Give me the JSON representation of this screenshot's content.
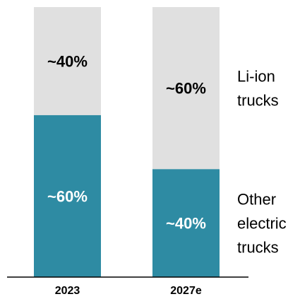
{
  "chart_data": {
    "type": "bar",
    "stacked": true,
    "normalized": true,
    "categories": [
      "2023",
      "2027e"
    ],
    "series": [
      {
        "name": "Other electric trucks",
        "name_lines": [
          "Other",
          "electric",
          "trucks"
        ],
        "values": [
          60,
          40
        ],
        "labels": [
          "~60%",
          "~40%"
        ],
        "color": "#2e8ba3",
        "label_color": "#ffffff"
      },
      {
        "name": "Li-ion trucks",
        "name_lines": [
          "Li-ion",
          "trucks"
        ],
        "values": [
          40,
          60
        ],
        "labels": [
          "~40%",
          "~60%"
        ],
        "color": "#e0e0e0",
        "label_color": "#000000"
      }
    ],
    "ylim": [
      0,
      100
    ],
    "title": "",
    "xlabel": "",
    "ylabel": "",
    "grid": false,
    "legend_position": "right",
    "axis_color": "#000000"
  }
}
